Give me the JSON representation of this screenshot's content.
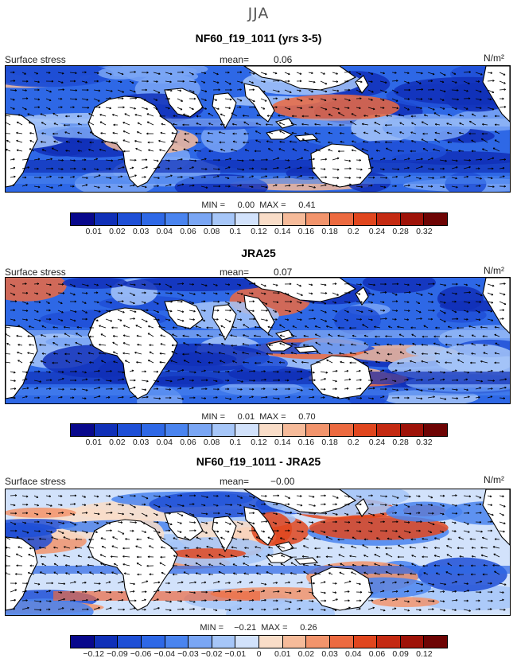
{
  "season": "JJA",
  "panels": [
    {
      "title": "NF60_f19_1011 (yrs 3-5)",
      "variable": "Surface stress",
      "mean_label": "mean=",
      "mean_value": "0.06",
      "units": "N/m²",
      "min_label": "MIN =",
      "min_value": "0.00",
      "max_label": "MAX =",
      "max_value": "0.41",
      "type": "abs"
    },
    {
      "title": "JRA25",
      "variable": "Surface stress",
      "mean_label": "mean=",
      "mean_value": "0.07",
      "units": "N/m²",
      "min_label": "MIN =",
      "min_value": "0.01",
      "max_label": "MAX =",
      "max_value": "0.70",
      "type": "abs"
    },
    {
      "title": "NF60_f19_1011 - JRA25",
      "variable": "Surface stress",
      "mean_label": "mean=",
      "mean_value": "−0.00",
      "units": "N/m²",
      "min_label": "MIN =",
      "min_value": "−0.21",
      "max_label": "MAX =",
      "max_value": "0.26",
      "type": "diff"
    }
  ],
  "colorbars": {
    "abs_ticks": [
      "0.01",
      "0.02",
      "0.03",
      "0.04",
      "0.06",
      "0.08",
      "0.1",
      "0.12",
      "0.14",
      "0.16",
      "0.18",
      "0.2",
      "0.24",
      "0.28",
      "0.32"
    ],
    "diff_ticks": [
      "−0.12",
      "−0.09",
      "−0.06",
      "−0.04",
      "−0.03",
      "−0.02",
      "−0.01",
      "0",
      "0.01",
      "0.02",
      "0.03",
      "0.04",
      "0.06",
      "0.09",
      "0.12"
    ],
    "colors": [
      "#08088c",
      "#1030b8",
      "#1e4fd6",
      "#2e68e6",
      "#4a84ef",
      "#7aa6f4",
      "#a6c6f8",
      "#d2e2fb",
      "#f9ddc8",
      "#f6bb9a",
      "#f2946c",
      "#ec6a40",
      "#e0461e",
      "#c42a12",
      "#9e1208",
      "#6e0404"
    ]
  },
  "colors": {
    "land": "#ffffff",
    "coast": "#000000",
    "border": "#000000"
  }
}
